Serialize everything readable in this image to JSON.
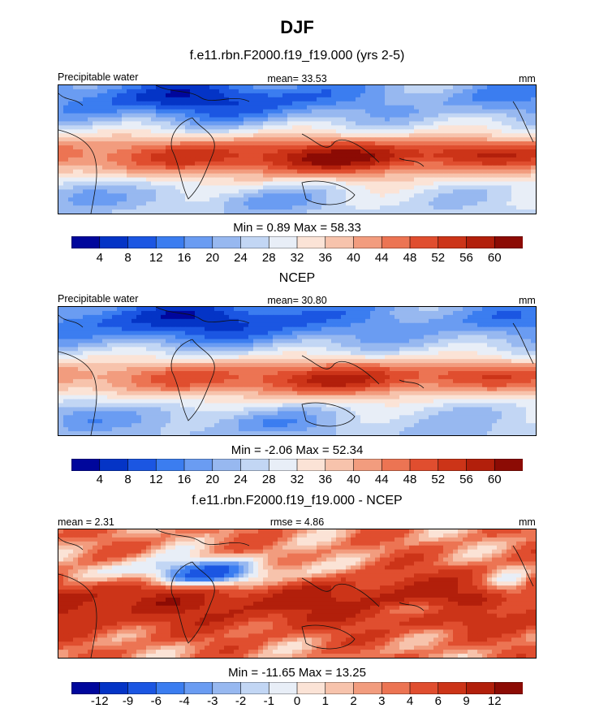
{
  "title": "DJF",
  "palette": {
    "standard": [
      "#00079c",
      "#0434c6",
      "#1b56e2",
      "#3b7df0",
      "#6a9cf2",
      "#97b8f0",
      "#c2d6f4",
      "#e8eef7",
      "#fbe3d6",
      "#f7c3ac",
      "#f29c7e",
      "#ec7453",
      "#e04e2f",
      "#cc3418",
      "#b21f0b",
      "#8c0b04"
    ],
    "diff": [
      "#00079c",
      "#0434c6",
      "#1b56e2",
      "#3b7df0",
      "#6a9cf2",
      "#97b8f0",
      "#c2d6f4",
      "#e8eef7",
      "#fbe3d6",
      "#f7c3ac",
      "#f29c7e",
      "#ec7453",
      "#e04e2f",
      "#cc3418",
      "#b21f0b",
      "#8c0b04"
    ]
  },
  "chart_data": [
    {
      "type": "heatmap",
      "title": "f.e11.rbn.F2000.f19_f19.000 (yrs 2-5)",
      "left_label": "Precipitable water",
      "center_label": "mean=  33.53",
      "right_label": "mm",
      "stats": "Min =   0.89 Max =  58.33",
      "mean": 33.53,
      "min": 0.89,
      "max": 58.33,
      "levels": [
        4,
        8,
        12,
        16,
        20,
        24,
        28,
        32,
        36,
        40,
        44,
        48,
        52,
        56,
        60
      ],
      "level_labels": [
        "4",
        "8",
        "12",
        "16",
        "20",
        "24",
        "28",
        "32",
        "36",
        "40",
        "44",
        "48",
        "52",
        "56",
        "60"
      ]
    },
    {
      "type": "heatmap",
      "title": "NCEP",
      "left_label": "Precipitable water",
      "center_label": "mean=  30.80",
      "right_label": "mm",
      "stats": "Min =  -2.06 Max =  52.34",
      "mean": 30.8,
      "min": -2.06,
      "max": 52.34,
      "levels": [
        4,
        8,
        12,
        16,
        20,
        24,
        28,
        32,
        36,
        40,
        44,
        48,
        52,
        56,
        60
      ],
      "level_labels": [
        "4",
        "8",
        "12",
        "16",
        "20",
        "24",
        "28",
        "32",
        "36",
        "40",
        "44",
        "48",
        "52",
        "56",
        "60"
      ]
    },
    {
      "type": "heatmap",
      "title": "f.e11.rbn.F2000.f19_f19.000 - NCEP",
      "left_label": "mean =   2.31",
      "center_label": "rmse =   4.86",
      "right_label": "mm",
      "stats": "Min = -11.65 Max =  13.25",
      "mean": 2.31,
      "rmse": 4.86,
      "min": -11.65,
      "max": 13.25,
      "levels": [
        -12,
        -9,
        -6,
        -4,
        -3,
        -2,
        -1,
        0,
        1,
        2,
        3,
        4,
        6,
        9,
        12
      ],
      "level_labels": [
        "-12",
        "-9",
        "-6",
        "-4",
        "-3",
        "-2",
        "-1",
        "0",
        "1",
        "2",
        "3",
        "4",
        "6",
        "9",
        "12"
      ]
    }
  ]
}
